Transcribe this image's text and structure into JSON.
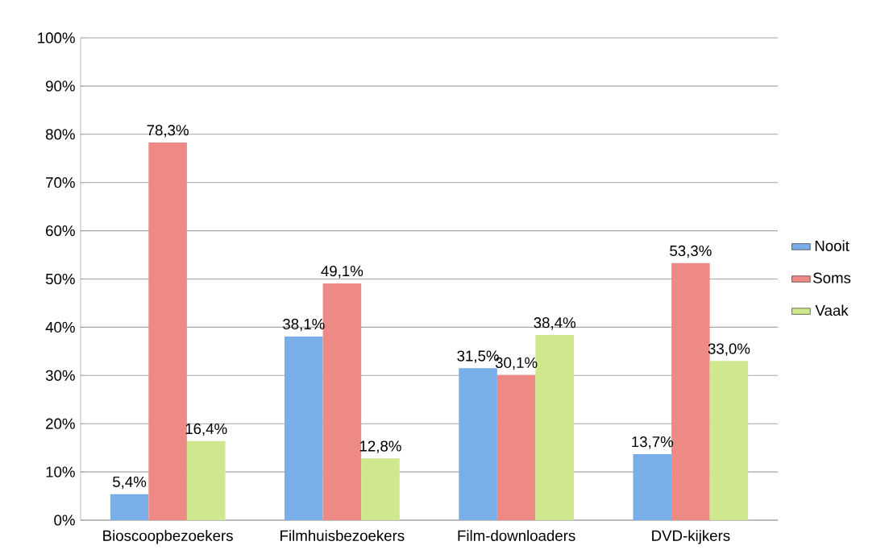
{
  "chart_data": {
    "type": "bar",
    "categories": [
      "Bioscoopbezoekers",
      "Filmhuisbezoekers",
      "Film-downloaders",
      "DVD-kijkers"
    ],
    "series": [
      {
        "name": "Nooit",
        "color": "#7aaee8",
        "values": [
          5.4,
          38.1,
          31.5,
          13.7
        ],
        "value_labels": [
          "5,4%",
          "38,1%",
          "31,5%",
          "13,7%"
        ]
      },
      {
        "name": "Soms",
        "color": "#ee8a86",
        "values": [
          78.3,
          49.1,
          30.1,
          53.3
        ],
        "value_labels": [
          "78,3%",
          "49,1%",
          "30,1%",
          "53,3%"
        ]
      },
      {
        "name": "Vaak",
        "color": "#cfe78d",
        "values": [
          16.4,
          12.8,
          38.4,
          33.0
        ],
        "value_labels": [
          "16,4%",
          "12,8%",
          "38,4%",
          "33,0%"
        ]
      }
    ],
    "ylim": [
      0,
      100
    ],
    "yticks": [
      {
        "value": 0,
        "label": "0%"
      },
      {
        "value": 10,
        "label": "10%"
      },
      {
        "value": 20,
        "label": "20%"
      },
      {
        "value": 30,
        "label": "30%"
      },
      {
        "value": 40,
        "label": "40%"
      },
      {
        "value": 50,
        "label": "50%"
      },
      {
        "value": 60,
        "label": "60%"
      },
      {
        "value": 70,
        "label": "70%"
      },
      {
        "value": 80,
        "label": "80%"
      },
      {
        "value": 90,
        "label": "90%"
      },
      {
        "value": 100,
        "label": "100%"
      }
    ],
    "grid": "y",
    "legend": "right"
  }
}
